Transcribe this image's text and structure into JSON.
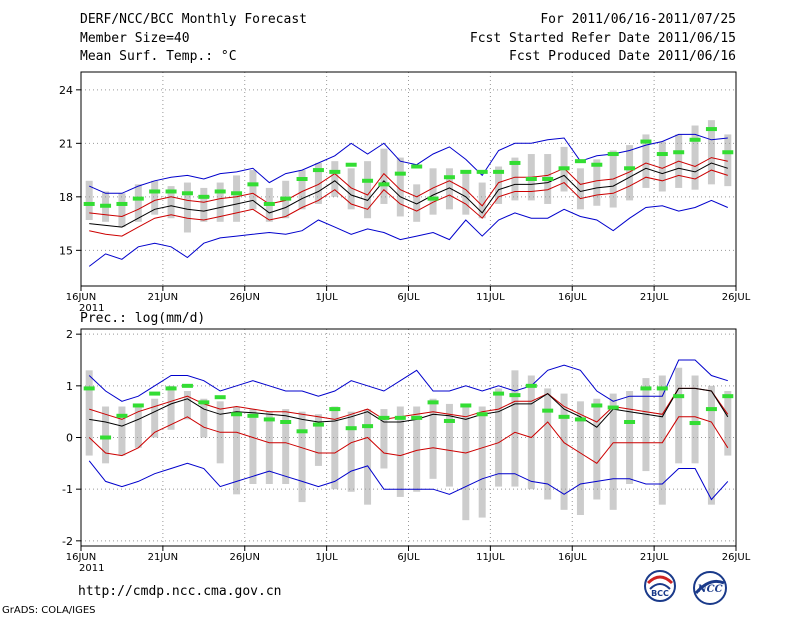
{
  "header": {
    "title": "DERF/NCC/BCC Monthly Forecast",
    "member_size": "Member Size=40",
    "variable": "Mean Surf. Temp.: °C",
    "period": "For 2011/06/16-2011/07/25",
    "started": "Fcst Started Refer Date 2011/06/15",
    "produced": "Fcst Produced Date 2011/06/16"
  },
  "colors": {
    "envelope": "#0000cc",
    "quartile": "#cc0000",
    "mean": "#000000",
    "observed": "#33dd33",
    "box": "#cccccc",
    "grid": "#999999"
  },
  "chart_data": [
    {
      "type": "line",
      "title": "Mean Surf. Temp.: °C",
      "x_ticks": [
        "16JUN",
        "21JUN",
        "26JUN",
        "1JUL",
        "6JUL",
        "11JUL",
        "16JUL",
        "21JUL",
        "26JUL"
      ],
      "x_year": "2011",
      "ylim": [
        13,
        25
      ],
      "yticks": [
        15,
        18,
        21,
        24
      ],
      "days": 40,
      "series": [
        {
          "name": "max",
          "values": [
            18.6,
            18.2,
            18.2,
            18.6,
            18.9,
            19.1,
            19.2,
            19.0,
            19.3,
            19.4,
            19.6,
            18.8,
            19.3,
            19.5,
            19.9,
            20.3,
            21.0,
            20.4,
            21.0,
            20.0,
            19.8,
            20.4,
            20.8,
            20.1,
            19.2,
            20.6,
            21.0,
            21.0,
            21.2,
            21.3,
            20.0,
            20.3,
            20.4,
            20.6,
            20.9,
            21.1,
            21.5,
            21.5,
            21.2,
            21.3
          ]
        },
        {
          "name": "upper",
          "values": [
            17.1,
            17.0,
            16.9,
            17.3,
            17.8,
            18.0,
            17.8,
            17.7,
            17.9,
            18.0,
            18.2,
            17.6,
            17.8,
            18.3,
            18.7,
            19.3,
            18.5,
            18.1,
            19.3,
            18.4,
            18.0,
            18.5,
            18.9,
            18.4,
            17.5,
            18.8,
            19.1,
            19.1,
            19.2,
            19.6,
            18.7,
            18.9,
            19.0,
            19.4,
            19.9,
            19.6,
            20.0,
            19.7,
            20.2,
            20.0
          ]
        },
        {
          "name": "mean",
          "values": [
            16.5,
            16.4,
            16.3,
            16.8,
            17.3,
            17.5,
            17.3,
            17.2,
            17.4,
            17.6,
            17.8,
            17.1,
            17.4,
            17.9,
            18.3,
            18.9,
            18.1,
            17.8,
            18.9,
            18.0,
            17.6,
            18.1,
            18.5,
            18.0,
            17.1,
            18.4,
            18.7,
            18.7,
            18.8,
            19.2,
            18.3,
            18.5,
            18.6,
            19.1,
            19.6,
            19.3,
            19.6,
            19.4,
            19.9,
            19.6
          ]
        },
        {
          "name": "lower",
          "values": [
            16.1,
            15.9,
            15.8,
            16.3,
            16.8,
            17.0,
            16.8,
            16.7,
            16.9,
            17.1,
            17.3,
            16.7,
            16.9,
            17.4,
            17.8,
            18.4,
            17.6,
            17.3,
            18.4,
            17.6,
            17.2,
            17.7,
            18.1,
            17.6,
            16.8,
            18.0,
            18.3,
            18.3,
            18.4,
            18.8,
            17.9,
            18.1,
            18.2,
            18.6,
            19.1,
            18.9,
            19.2,
            19.0,
            19.5,
            19.2
          ]
        },
        {
          "name": "min",
          "values": [
            14.1,
            14.8,
            14.5,
            15.2,
            15.4,
            15.2,
            14.6,
            15.4,
            15.7,
            15.8,
            15.9,
            16.0,
            15.9,
            16.1,
            16.7,
            16.3,
            15.9,
            16.2,
            16.0,
            15.6,
            15.8,
            16.0,
            15.6,
            16.7,
            15.8,
            16.7,
            17.1,
            16.8,
            16.8,
            17.3,
            16.9,
            16.7,
            16.1,
            16.8,
            17.4,
            17.5,
            17.2,
            17.4,
            17.8,
            17.4
          ]
        },
        {
          "name": "observed",
          "values": [
            17.6,
            17.5,
            17.6,
            17.9,
            18.3,
            18.3,
            18.2,
            18.0,
            18.3,
            18.2,
            18.7,
            17.6,
            17.9,
            19.0,
            19.5,
            19.4,
            19.8,
            18.9,
            18.7,
            19.3,
            19.7,
            17.9,
            19.1,
            19.4,
            19.4,
            19.4,
            19.9,
            19.0,
            19.0,
            19.6,
            20.0,
            19.8,
            20.4,
            19.6,
            21.1,
            20.4,
            20.5,
            21.2,
            21.8,
            20.5
          ]
        },
        {
          "name": "box_low",
          "values": [
            16.7,
            16.6,
            16.3,
            16.6,
            17.0,
            16.8,
            16.0,
            16.6,
            16.6,
            16.6,
            17.3,
            16.6,
            16.8,
            17.3,
            17.6,
            18.0,
            17.3,
            16.8,
            17.6,
            16.9,
            16.6,
            17.0,
            17.3,
            17.0,
            16.8,
            17.6,
            17.8,
            17.8,
            17.6,
            18.3,
            17.3,
            17.5,
            17.4,
            17.8,
            18.5,
            18.3,
            18.5,
            18.4,
            18.7,
            18.6
          ]
        },
        {
          "name": "box_high",
          "values": [
            18.9,
            18.3,
            18.2,
            18.7,
            18.9,
            18.6,
            18.8,
            18.5,
            18.8,
            19.2,
            19.5,
            18.5,
            18.9,
            19.5,
            19.9,
            20.0,
            19.6,
            20.0,
            20.7,
            20.2,
            18.7,
            19.6,
            19.6,
            19.5,
            18.8,
            19.7,
            20.2,
            20.4,
            20.4,
            20.8,
            19.6,
            20.1,
            20.6,
            20.9,
            21.5,
            21.1,
            21.5,
            22.0,
            22.3,
            21.5
          ]
        }
      ]
    },
    {
      "type": "line",
      "title": "Prec.: log(mm/d)",
      "x_ticks": [
        "16JUN",
        "21JUN",
        "26JUN",
        "1JUL",
        "6JUL",
        "11JUL",
        "16JUL",
        "21JUL",
        "26JUL"
      ],
      "x_year": "2011",
      "ylim": [
        -2.1,
        2.1
      ],
      "yticks": [
        -2,
        -1,
        0,
        1,
        2
      ],
      "days": 40,
      "series": [
        {
          "name": "max",
          "values": [
            1.2,
            0.9,
            0.7,
            0.8,
            1.0,
            1.2,
            1.2,
            1.1,
            0.9,
            1.0,
            1.1,
            1.0,
            0.9,
            0.9,
            0.8,
            0.9,
            1.1,
            1.0,
            0.9,
            1.1,
            1.3,
            0.9,
            0.9,
            1.0,
            0.9,
            1.0,
            0.9,
            1.0,
            1.3,
            1.4,
            1.3,
            0.9,
            0.7,
            0.8,
            0.8,
            0.8,
            1.5,
            1.5,
            1.2,
            1.1
          ]
        },
        {
          "name": "upper",
          "values": [
            0.55,
            0.45,
            0.35,
            0.5,
            0.6,
            0.7,
            0.8,
            0.65,
            0.55,
            0.6,
            0.55,
            0.5,
            0.5,
            0.45,
            0.4,
            0.35,
            0.45,
            0.55,
            0.35,
            0.4,
            0.45,
            0.5,
            0.45,
            0.4,
            0.5,
            0.55,
            0.7,
            0.7,
            0.85,
            0.6,
            0.45,
            0.3,
            0.6,
            0.55,
            0.5,
            0.45,
            0.95,
            0.95,
            0.9,
            0.45
          ]
        },
        {
          "name": "mean",
          "values": [
            0.35,
            0.3,
            0.22,
            0.35,
            0.5,
            0.65,
            0.75,
            0.55,
            0.45,
            0.5,
            0.48,
            0.45,
            0.42,
            0.35,
            0.3,
            0.32,
            0.4,
            0.5,
            0.3,
            0.3,
            0.35,
            0.45,
            0.42,
            0.35,
            0.45,
            0.5,
            0.65,
            0.65,
            0.85,
            0.55,
            0.4,
            0.2,
            0.55,
            0.5,
            0.45,
            0.4,
            0.95,
            0.95,
            0.9,
            0.4
          ]
        },
        {
          "name": "lower",
          "values": [
            0.0,
            -0.3,
            -0.35,
            -0.2,
            0.1,
            0.25,
            0.4,
            0.2,
            0.1,
            0.1,
            0.0,
            -0.1,
            -0.1,
            -0.2,
            -0.3,
            -0.3,
            -0.1,
            0.0,
            -0.3,
            -0.35,
            -0.25,
            -0.2,
            -0.25,
            -0.3,
            -0.2,
            -0.1,
            0.1,
            0.0,
            0.3,
            -0.1,
            -0.3,
            -0.5,
            -0.1,
            -0.1,
            -0.1,
            -0.1,
            0.4,
            0.4,
            0.3,
            -0.2
          ]
        },
        {
          "name": "min",
          "values": [
            -0.45,
            -0.85,
            -0.95,
            -0.85,
            -0.7,
            -0.6,
            -0.5,
            -0.6,
            -0.95,
            -0.85,
            -0.75,
            -0.65,
            -0.75,
            -0.85,
            -0.95,
            -0.85,
            -0.65,
            -0.55,
            -1.0,
            -1.0,
            -1.0,
            -1.0,
            -1.1,
            -0.95,
            -0.8,
            -0.7,
            -0.7,
            -0.85,
            -0.9,
            -1.1,
            -0.9,
            -0.85,
            -0.8,
            -0.8,
            -0.9,
            -0.9,
            -0.6,
            -0.6,
            -1.2,
            -0.85
          ]
        },
        {
          "name": "observed",
          "values": [
            0.95,
            0.0,
            0.42,
            0.62,
            0.85,
            0.95,
            1.0,
            0.68,
            0.78,
            0.45,
            0.42,
            0.35,
            0.3,
            0.12,
            0.25,
            0.55,
            0.18,
            0.22,
            0.38,
            0.38,
            0.38,
            0.68,
            0.32,
            0.62,
            0.45,
            0.85,
            0.82,
            1.0,
            0.52,
            0.4,
            0.35,
            0.62,
            0.58,
            0.3,
            0.95,
            0.95,
            0.8,
            0.28,
            0.55,
            0.8
          ]
        },
        {
          "name": "box_low",
          "values": [
            -0.35,
            -0.5,
            -0.35,
            -0.2,
            0.0,
            0.15,
            0.35,
            0.0,
            -0.5,
            -1.1,
            -0.9,
            -0.9,
            -0.9,
            -1.25,
            -0.55,
            -1.0,
            -1.05,
            -1.3,
            -0.6,
            -1.15,
            -1.05,
            -0.8,
            -0.95,
            -1.6,
            -1.55,
            -0.95,
            -0.95,
            -1.0,
            -1.2,
            -1.4,
            -1.5,
            -1.2,
            -1.4,
            -0.9,
            -0.65,
            -1.3,
            -0.5,
            -0.5,
            -1.3,
            -0.35
          ]
        },
        {
          "name": "box_high",
          "values": [
            1.3,
            0.6,
            0.6,
            0.6,
            0.75,
            1.0,
            0.9,
            0.75,
            0.7,
            0.6,
            0.55,
            0.5,
            0.55,
            0.5,
            0.45,
            0.6,
            0.5,
            0.55,
            0.55,
            0.6,
            0.6,
            0.75,
            0.65,
            0.6,
            0.6,
            0.95,
            1.3,
            1.2,
            0.95,
            0.85,
            0.7,
            0.75,
            0.85,
            0.9,
            1.15,
            1.2,
            1.35,
            1.2,
            1.0,
            0.9
          ]
        }
      ]
    }
  ],
  "second_panel_label": "Prec.: log(mm/d)",
  "footer": {
    "url": "http://cmdp.ncc.cma.gov.cn",
    "credit": "GrADS: COLA/IGES",
    "logo_bcc": "BCC",
    "logo_ncc": "NCC"
  }
}
